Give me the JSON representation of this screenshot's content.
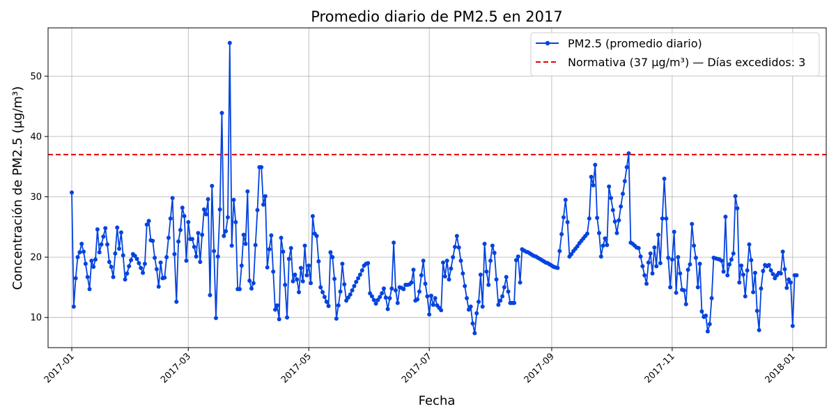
{
  "chart_data": {
    "type": "line",
    "title": "Promedio diario de PM2.5 en 2017",
    "xlabel": "Fecha",
    "ylabel": "Concentración de PM2.5 (μg/m³)",
    "x_start": "2017-01-01",
    "xlim": [
      "2016-12-20",
      "2018-01-18"
    ],
    "ylim": [
      5,
      58
    ],
    "x_ticks": [
      "2017-01-01",
      "2017-03-01",
      "2017-05-01",
      "2017-07-01",
      "2017-09-01",
      "2017-11-01",
      "2018-01-01"
    ],
    "x_tick_labels": [
      "2017-01",
      "2017-03",
      "2017-05",
      "2017-07",
      "2017-09",
      "2017-11",
      "2018-01"
    ],
    "y_ticks": [
      10,
      20,
      30,
      40,
      50
    ],
    "y_tick_labels": [
      "10",
      "20",
      "30",
      "40",
      "50"
    ],
    "grid": true,
    "legend_position": "top-right",
    "series": [
      {
        "name": "PM2.5 (promedio diario)",
        "color": "#0343df",
        "marker": "circle",
        "values": [
          30.7,
          11.8,
          16.5,
          20.0,
          20.8,
          22.2,
          20.9,
          18.9,
          16.7,
          14.7,
          19.4,
          18.4,
          19.6,
          24.6,
          20.8,
          22.1,
          23.4,
          24.8,
          22.1,
          19.2,
          18.4,
          16.7,
          20.6,
          24.9,
          21.4,
          24.1,
          20.3,
          16.3,
          17.3,
          18.5,
          19.5,
          20.5,
          20.2,
          19.7,
          19.0,
          18.2,
          17.4,
          18.9,
          25.4,
          26.0,
          22.8,
          22.7,
          19.9,
          18.0,
          15.1,
          19.1,
          16.5,
          16.6,
          20.0,
          23.2,
          26.4,
          29.8,
          20.5,
          12.6,
          22.6,
          24.5,
          28.2,
          26.8,
          19.4,
          25.8,
          23.0,
          23.0,
          21.7,
          20.1,
          24.0,
          19.2,
          23.7,
          27.9,
          27.1,
          29.6,
          13.7,
          31.8,
          21.0,
          9.9,
          20.1,
          27.9,
          43.9,
          23.5,
          24.3,
          26.6,
          55.5,
          21.9,
          29.5,
          25.8,
          14.7,
          14.7,
          18.6,
          23.7,
          22.2,
          30.9,
          16.1,
          14.8,
          15.7,
          22.0,
          27.8,
          34.9,
          34.9,
          28.7,
          30.1,
          18.3,
          21.3,
          23.6,
          17.6,
          11.3,
          12.0,
          9.7,
          23.2,
          20.9,
          15.4,
          10.0,
          19.7,
          21.5,
          16.0,
          17.1,
          16.3,
          14.2,
          18.2,
          16.0,
          21.9,
          17.0,
          18.6,
          15.7,
          26.8,
          23.9,
          23.5,
          19.3,
          15.0,
          14.2,
          13.4,
          12.6,
          11.9,
          20.8,
          20.0,
          16.4,
          9.8,
          12.0,
          14.3,
          18.9,
          15.5,
          12.8,
          13.3,
          13.8,
          14.5,
          15.2,
          15.9,
          16.5,
          17.1,
          17.8,
          18.6,
          18.9,
          19.0,
          14.0,
          13.5,
          12.9,
          12.3,
          12.9,
          13.4,
          14.0,
          14.8,
          13.3,
          11.4,
          13.2,
          14.8,
          22.4,
          14.5,
          12.4,
          15.0,
          14.9,
          14.7,
          15.4,
          15.4,
          15.5,
          15.8,
          17.9,
          12.8,
          13.0,
          14.3,
          17.0,
          19.4,
          15.6,
          13.5,
          10.5,
          13.6,
          12.1,
          13.2,
          12.0,
          11.6,
          11.2,
          19.1,
          16.8,
          19.4,
          16.3,
          18.1,
          20.0,
          21.7,
          23.5,
          21.6,
          19.4,
          17.3,
          15.2,
          13.2,
          11.3,
          11.8,
          9.0,
          7.4,
          10.7,
          12.6,
          17.1,
          11.8,
          22.2,
          17.6,
          15.4,
          19.4,
          21.9,
          20.7,
          16.3,
          12.1,
          12.8,
          13.5,
          15.0,
          16.7,
          14.3,
          12.4,
          12.4,
          12.4,
          19.5,
          20.1,
          15.8,
          21.3,
          21.1,
          20.9,
          20.8,
          20.6,
          20.4,
          20.2,
          20.1,
          19.9,
          19.7,
          19.5,
          19.3,
          19.1,
          19.0,
          18.8,
          18.6,
          18.4,
          18.3,
          18.2,
          21.0,
          23.8,
          26.6,
          29.5,
          25.8,
          20.1,
          20.5,
          21.0,
          21.4,
          21.8,
          22.3,
          22.7,
          23.1,
          23.5,
          23.9,
          26.4,
          33.3,
          31.9,
          35.3,
          26.5,
          24.0,
          20.1,
          21.9,
          23.1,
          22.0,
          31.7,
          29.8,
          27.8,
          25.9,
          24.0,
          26.1,
          28.4,
          30.5,
          32.6,
          34.9,
          37.2,
          22.4,
          22.2,
          21.9,
          21.6,
          21.5,
          20.1,
          18.5,
          17.0,
          15.6,
          19.1,
          20.6,
          17.3,
          21.6,
          18.5,
          23.7,
          19.0,
          26.4,
          33.0,
          26.4,
          19.9,
          15.0,
          19.6,
          24.2,
          14.1,
          20.0,
          17.3,
          14.6,
          14.5,
          12.2,
          17.9,
          18.8,
          25.5,
          21.9,
          19.9,
          15.0,
          18.9,
          11.0,
          10.1,
          10.3,
          7.7,
          8.9,
          13.2,
          19.9,
          19.8,
          19.7,
          19.6,
          19.4,
          17.6,
          26.7,
          17.0,
          18.8,
          19.6,
          20.6,
          30.1,
          28.1,
          15.8,
          18.6,
          17.1,
          13.5,
          17.8,
          22.1,
          19.5,
          14.2,
          17.4,
          11.1,
          7.9,
          14.8,
          17.7,
          18.7,
          18.5,
          18.7,
          17.8,
          17.2,
          16.5,
          17.0,
          17.4,
          17.3,
          20.9,
          18.0,
          14.9,
          16.3,
          15.8,
          8.6,
          17.0,
          17.0
        ]
      },
      {
        "name": "Normativa (37 μg/m³) — Días excedidos: 3",
        "color": "#e50000",
        "style": "dashed",
        "values": [
          37
        ]
      }
    ]
  }
}
